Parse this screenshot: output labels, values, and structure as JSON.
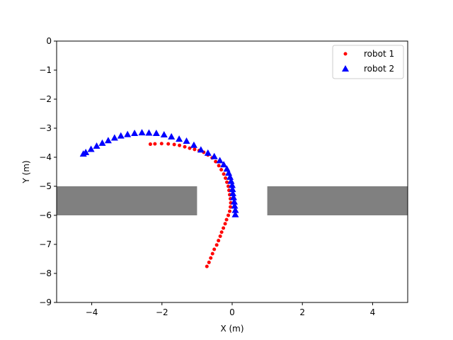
{
  "chart_data": {
    "type": "scatter",
    "title": "",
    "xlabel": "X (m)",
    "ylabel": "Y (m)",
    "xlim": [
      -5,
      5
    ],
    "ylim": [
      -9,
      0
    ],
    "x_ticks": [
      -4,
      -2,
      0,
      2,
      4
    ],
    "x_tick_labels": [
      "−4",
      "−2",
      "0",
      "2",
      "4"
    ],
    "y_ticks": [
      0,
      -1,
      -2,
      -3,
      -4,
      -5,
      -6,
      -7,
      -8,
      -9
    ],
    "y_tick_labels": [
      "0",
      "−1",
      "−2",
      "−3",
      "−4",
      "−5",
      "−6",
      "−7",
      "−8",
      "−9"
    ],
    "grid": false,
    "legend_position": "top-right",
    "obstacles": [
      {
        "x": [
          -5,
          -1
        ],
        "y": [
          -6,
          -5
        ],
        "color": "#808080"
      },
      {
        "x": [
          1,
          5
        ],
        "y": [
          -6,
          -5
        ],
        "color": "#808080"
      }
    ],
    "series": [
      {
        "name": "robot 1",
        "marker": "circle",
        "color": "#ff0000",
        "x": [
          -0.72,
          -0.66,
          -0.61,
          -0.56,
          -0.51,
          -0.44,
          -0.39,
          -0.34,
          -0.3,
          -0.25,
          -0.2,
          -0.16,
          -0.11,
          -0.07,
          -0.05,
          -0.04,
          -0.05,
          -0.07,
          -0.09,
          -0.11,
          -0.15,
          -0.19,
          -0.24,
          -0.31,
          -0.38,
          -0.47,
          -0.57,
          -0.69,
          -0.81,
          -0.94,
          -1.07,
          -1.21,
          -1.35,
          -1.5,
          -1.65,
          -1.82,
          -2.01,
          -2.2,
          -2.33
        ],
        "y": [
          -7.76,
          -7.62,
          -7.47,
          -7.32,
          -7.17,
          -7.02,
          -6.87,
          -6.72,
          -6.58,
          -6.44,
          -6.29,
          -6.15,
          -6.0,
          -5.86,
          -5.71,
          -5.57,
          -5.43,
          -5.29,
          -5.14,
          -5.0,
          -4.86,
          -4.72,
          -4.58,
          -4.43,
          -4.29,
          -4.15,
          -4.02,
          -3.92,
          -3.83,
          -3.77,
          -3.73,
          -3.69,
          -3.64,
          -3.59,
          -3.56,
          -3.54,
          -3.53,
          -3.54,
          -3.55
        ]
      },
      {
        "name": "robot 2",
        "marker": "triangle",
        "color": "#0000ff",
        "x": [
          0.09,
          0.09,
          0.07,
          0.06,
          0.04,
          0.02,
          0.01,
          0.0,
          -0.03,
          -0.06,
          -0.1,
          -0.15,
          -0.24,
          -0.35,
          -0.51,
          -0.69,
          -0.89,
          -1.09,
          -1.3,
          -1.51,
          -1.73,
          -1.94,
          -2.16,
          -2.37,
          -2.57,
          -2.78,
          -2.98,
          -3.17,
          -3.35,
          -3.53,
          -3.7,
          -3.86,
          -4.02,
          -4.17,
          -4.24
        ],
        "y": [
          -5.97,
          -5.82,
          -5.67,
          -5.53,
          -5.38,
          -5.24,
          -5.1,
          -4.96,
          -4.82,
          -4.68,
          -4.54,
          -4.4,
          -4.25,
          -4.11,
          -3.97,
          -3.85,
          -3.74,
          -3.58,
          -3.44,
          -3.37,
          -3.29,
          -3.22,
          -3.17,
          -3.16,
          -3.15,
          -3.17,
          -3.21,
          -3.26,
          -3.33,
          -3.42,
          -3.51,
          -3.61,
          -3.72,
          -3.83,
          -3.88
        ]
      }
    ]
  }
}
